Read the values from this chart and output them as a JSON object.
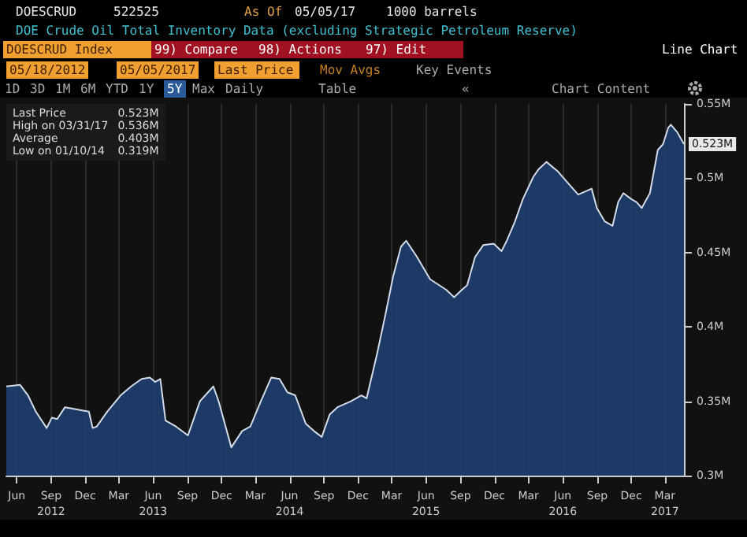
{
  "chart_data": {
    "type": "area",
    "title": "DOE Crude Oil Total Inventory Data (excluding Strategic Petroleum Reserve)",
    "annotations": [
      "DOESCRUD",
      "522525",
      "As Of",
      "05/05/17",
      "1000 barrels",
      "DOESCRUD Index",
      "99) Compare",
      "98) Actions",
      "97) Edit",
      "Line Chart",
      "05/18/2012",
      "05/05/2017",
      "Last Price",
      "Mov Avgs",
      "Key Events",
      "1D",
      "3D",
      "1M",
      "6M",
      "YTD",
      "1Y",
      "5Y",
      "Max",
      "Daily",
      "Table",
      "«",
      "Chart Content",
      "Last Price",
      "0.523M",
      "High on 03/31/17",
      "0.536M",
      "Average",
      "0.403M",
      "Low on 01/10/14",
      "0.319M",
      {
        "text": "0.523M",
        "x": "2017-05-05",
        "y": 0.523
      }
    ],
    "x": [
      "2012-05-18",
      "2012-06-24",
      "2012-07-15",
      "2012-08-05",
      "2012-09-03",
      "2012-09-17",
      "2012-10-01",
      "2012-10-22",
      "2012-11-12",
      "2012-12-04",
      "2012-12-25",
      "2013-01-04",
      "2013-01-15",
      "2013-02-12",
      "2013-03-20",
      "2013-04-17",
      "2013-05-15",
      "2013-06-06",
      "2013-06-20",
      "2013-07-04",
      "2013-07-18",
      "2013-08-15",
      "2013-09-16",
      "2013-10-18",
      "2013-11-23",
      "2013-12-07",
      "2014-01-10",
      "2014-02-08",
      "2014-03-02",
      "2014-03-30",
      "2014-04-27",
      "2014-05-19",
      "2014-06-09",
      "2014-06-30",
      "2014-07-28",
      "2014-08-19",
      "2014-09-09",
      "2014-09-30",
      "2014-10-21",
      "2014-11-26",
      "2014-12-24",
      "2015-01-07",
      "2015-02-04",
      "2015-02-26",
      "2015-03-19",
      "2015-04-09",
      "2015-04-23",
      "2015-05-22",
      "2015-06-26",
      "2015-08-08",
      "2015-08-29",
      "2015-09-19",
      "2015-10-03",
      "2015-10-24",
      "2015-11-15",
      "2015-12-13",
      "2016-01-03",
      "2016-01-17",
      "2016-02-08",
      "2016-02-29",
      "2016-03-28",
      "2016-04-11",
      "2016-05-02",
      "2016-05-31",
      "2016-06-28",
      "2016-07-26",
      "2016-08-31",
      "2016-09-14",
      "2016-10-05",
      "2016-10-26",
      "2016-11-10",
      "2016-11-24",
      "2016-12-15",
      "2016-12-29",
      "2017-01-12",
      "2017-02-03",
      "2017-02-24",
      "2017-03-10",
      "2017-03-24",
      "2017-03-31",
      "2017-04-17",
      "2017-05-05"
    ],
    "series": [
      {
        "color": "#1f3d6b",
        "values": [
          0.36,
          0.361,
          0.354,
          0.343,
          0.332,
          0.339,
          0.338,
          0.346,
          0.345,
          0.344,
          0.343,
          0.332,
          0.333,
          0.343,
          0.354,
          0.36,
          0.365,
          0.366,
          0.363,
          0.365,
          0.337,
          0.333,
          0.327,
          0.35,
          0.36,
          0.35,
          0.319,
          0.33,
          0.333,
          0.35,
          0.366,
          0.365,
          0.356,
          0.354,
          0.335,
          0.33,
          0.326,
          0.341,
          0.346,
          0.35,
          0.354,
          0.352,
          0.382,
          0.408,
          0.434,
          0.454,
          0.458,
          0.447,
          0.432,
          0.425,
          0.42,
          0.425,
          0.428,
          0.447,
          0.455,
          0.456,
          0.451,
          0.458,
          0.471,
          0.486,
          0.501,
          0.506,
          0.511,
          0.505,
          0.497,
          0.489,
          0.493,
          0.48,
          0.471,
          0.468,
          0.484,
          0.49,
          0.486,
          0.484,
          0.48,
          0.49,
          0.519,
          0.523,
          0.534,
          0.536,
          0.531,
          0.523
        ]
      }
    ],
    "xlim": [
      "2012-05-18",
      "2017-05-05"
    ],
    "xticks": [
      {
        "value": "2012-06-15",
        "label": "Jun"
      },
      {
        "value": "2012-09-15",
        "label": "Sep\n2012"
      },
      {
        "value": "2012-12-15",
        "label": "Dec"
      },
      {
        "value": "2013-03-15",
        "label": "Mar"
      },
      {
        "value": "2013-06-15",
        "label": "Jun\n2013"
      },
      {
        "value": "2013-09-15",
        "label": "Sep"
      },
      {
        "value": "2013-12-15",
        "label": "Dec"
      },
      {
        "value": "2014-03-15",
        "label": "Mar"
      },
      {
        "value": "2014-06-15",
        "label": "Jun\n2014"
      },
      {
        "value": "2014-09-15",
        "label": "Sep"
      },
      {
        "value": "2014-12-15",
        "label": "Dec"
      },
      {
        "value": "2015-03-15",
        "label": "Mar"
      },
      {
        "value": "2015-06-15",
        "label": "Jun\n2015"
      },
      {
        "value": "2015-09-15",
        "label": "Sep"
      },
      {
        "value": "2015-12-15",
        "label": "Dec"
      },
      {
        "value": "2016-03-15",
        "label": "Mar"
      },
      {
        "value": "2016-06-15",
        "label": "Jun\n2016"
      },
      {
        "value": "2016-09-15",
        "label": "Sep"
      },
      {
        "value": "2016-12-15",
        "label": "Dec"
      },
      {
        "value": "2017-03-15",
        "label": "Mar\n2017"
      }
    ],
    "ylim": [
      0.3,
      0.55
    ],
    "yticks": [
      {
        "value": 0.3,
        "label": "0.3M"
      },
      {
        "value": 0.35,
        "label": "0.35M"
      },
      {
        "value": 0.4,
        "label": "0.4M"
      },
      {
        "value": 0.45,
        "label": "0.45M"
      },
      {
        "value": 0.5,
        "label": "0.5M"
      },
      {
        "value": 0.55,
        "label": "0.55M"
      }
    ],
    "grid": "x"
  }
}
